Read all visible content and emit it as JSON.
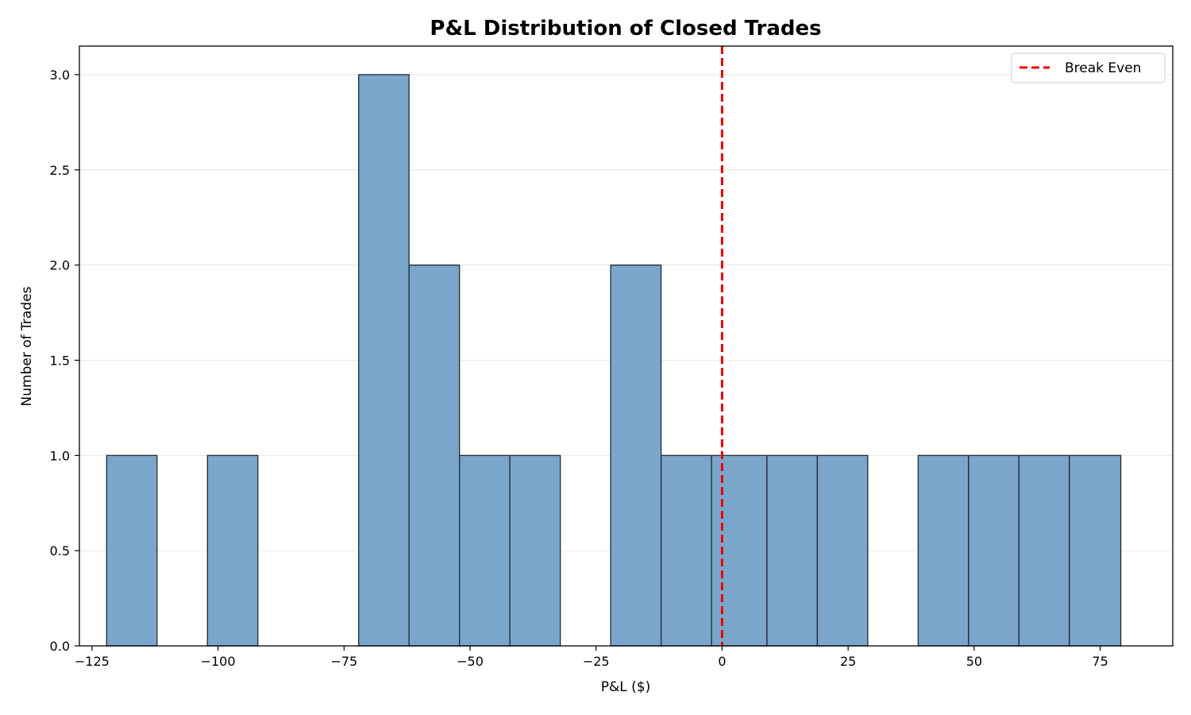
{
  "chart_data": {
    "type": "bar",
    "title": "P&L Distribution of Closed Trades",
    "xlabel": "P&L ($)",
    "ylabel": "Number of Trades",
    "xlim": [
      -127.5,
      89.4
    ],
    "ylim": [
      0,
      3.15
    ],
    "xticks": [
      -125,
      -100,
      -75,
      -50,
      -25,
      0,
      25,
      50,
      75
    ],
    "xtick_labels": [
      "−125",
      "−100",
      "−75",
      "−50",
      "−25",
      "0",
      "25",
      "50",
      "75"
    ],
    "yticks": [
      0,
      0.5,
      1,
      1.5,
      2,
      2.5,
      3
    ],
    "ytick_labels": [
      "0.0",
      "0.5",
      "1.0",
      "1.5",
      "2.0",
      "2.5",
      "3.0"
    ],
    "grid": "y",
    "bins": [
      {
        "x0": -122.1,
        "x1": -112.1,
        "count": 1
      },
      {
        "x0": -102.1,
        "x1": -92.1,
        "count": 1
      },
      {
        "x0": -72.1,
        "x1": -62.1,
        "count": 3
      },
      {
        "x0": -62.1,
        "x1": -52.1,
        "count": 2
      },
      {
        "x0": -52.1,
        "x1": -42.1,
        "count": 1
      },
      {
        "x0": -42.1,
        "x1": -32.1,
        "count": 1
      },
      {
        "x0": -22.1,
        "x1": -12.1,
        "count": 2
      },
      {
        "x0": -12.1,
        "x1": -2.1,
        "count": 1
      },
      {
        "x0": -2.1,
        "x1": 8.9,
        "count": 1
      },
      {
        "x0": 8.9,
        "x1": 18.9,
        "count": 1
      },
      {
        "x0": 18.9,
        "x1": 28.9,
        "count": 1
      },
      {
        "x0": 38.9,
        "x1": 48.9,
        "count": 1
      },
      {
        "x0": 48.9,
        "x1": 58.9,
        "count": 1
      },
      {
        "x0": 58.9,
        "x1": 68.9,
        "count": 1
      },
      {
        "x0": 68.9,
        "x1": 79.1,
        "count": 1
      }
    ],
    "reference_line": {
      "x": 0,
      "label": "Break Even",
      "color": "#ee0000",
      "style": "dashed"
    },
    "legend": {
      "placement": "top-right",
      "entries": [
        "Break Even"
      ]
    },
    "colors": {
      "bar_fill": "#7ba6cb",
      "bar_edge": "#1f2a33",
      "grid": "#e6e6e6"
    }
  }
}
